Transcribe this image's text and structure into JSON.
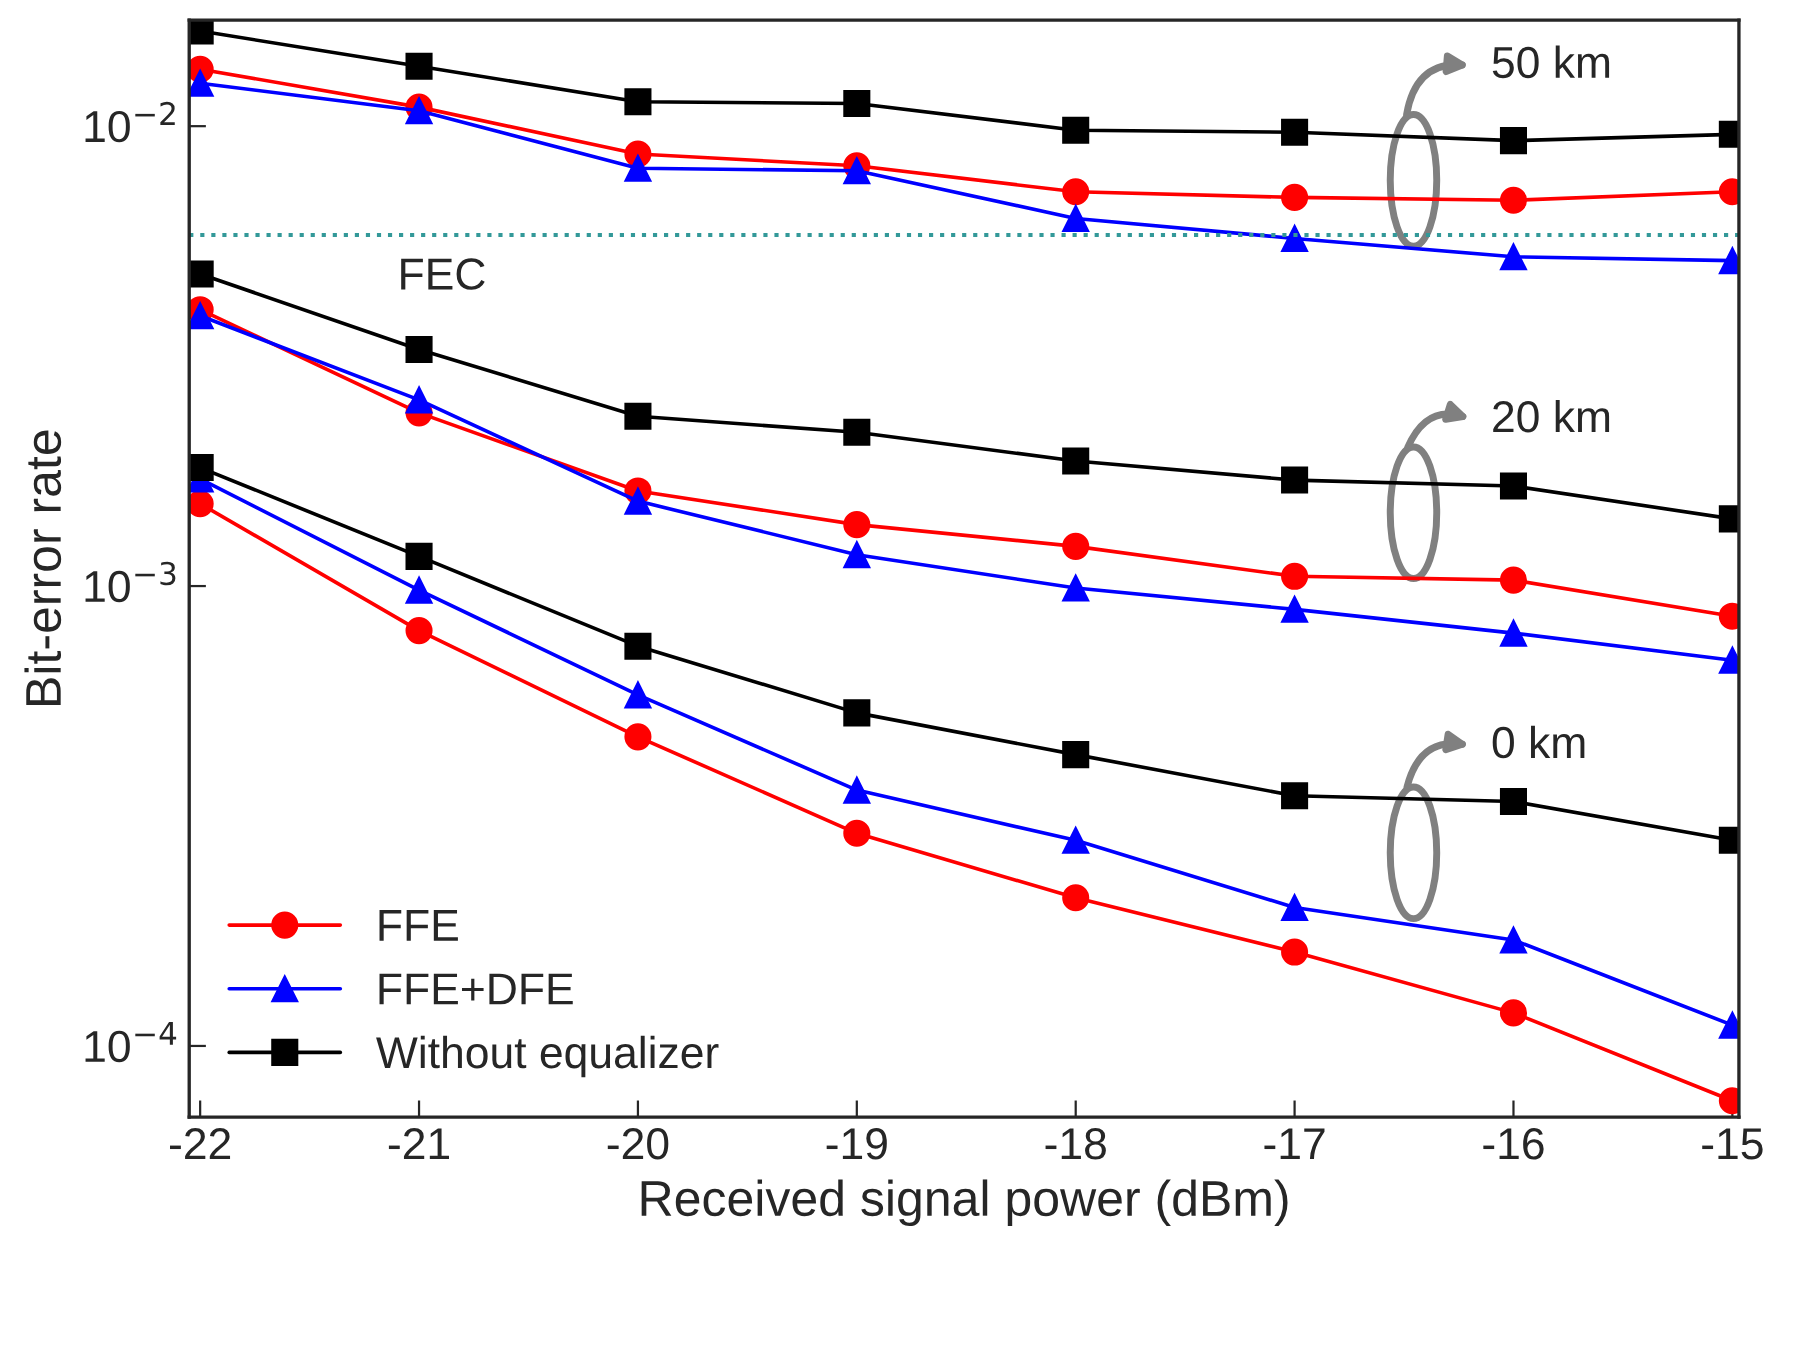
{
  "chart_data": {
    "type": "line",
    "xlabel": "Received signal power (dBm)",
    "ylabel": "Bit-error rate",
    "x": [
      -22,
      -21,
      -20,
      -19,
      -18,
      -17,
      -16,
      -15
    ],
    "xlim": [
      -22.05,
      -14.97
    ],
    "xticks": [
      -22,
      -21,
      -20,
      -19,
      -18,
      -17,
      -16,
      -15
    ],
    "ylim": [
      7e-05,
      0.017
    ],
    "log": "y",
    "yticks": [
      {
        "value": 0.01,
        "label": "10$^{−2}$"
      },
      {
        "value": 0.001,
        "label": "10$^{−3}$"
      },
      {
        "value": 0.0001,
        "label": "10$^{−4}$"
      }
    ],
    "grid": false,
    "legend": "bottom left",
    "ref_lines": [
      {
        "axis": "y",
        "value": 0.0058,
        "label": "FEC",
        "color": "#339999",
        "line_style": "dotted"
      }
    ],
    "annotations": [
      "50 km",
      "20 km",
      "0 km"
    ],
    "series": [
      {
        "color": "#000000",
        "marker": "square",
        "values": [
          0.0161,
          0.0135,
          0.0113,
          0.0112,
          0.0098,
          0.0097,
          0.0093,
          0.0096
        ]
      },
      {
        "color": "#ff0000",
        "marker": "circle",
        "values": [
          0.0133,
          0.011,
          0.0087,
          0.0082,
          0.0072,
          0.007,
          0.0069,
          0.0072
        ]
      },
      {
        "color": "#0000ff",
        "marker": "triangle",
        "values": [
          0.0124,
          0.0108,
          0.0081,
          0.008,
          0.0063,
          0.0057,
          0.0052,
          0.0051
        ]
      },
      {
        "color": "#000000",
        "marker": "square",
        "values": [
          0.00477,
          0.00327,
          0.00234,
          0.00216,
          0.00187,
          0.0017,
          0.00165,
          0.0014
        ]
      },
      {
        "color": "#ff0000",
        "marker": "circle",
        "values": [
          0.00399,
          0.00238,
          0.00161,
          0.00136,
          0.00122,
          0.00105,
          0.00103,
          0.00086
        ]
      },
      {
        "color": "#0000ff",
        "marker": "triangle",
        "values": [
          0.00387,
          0.00254,
          0.00153,
          0.00117,
          0.00099,
          0.00089,
          0.00079,
          0.00069
        ]
      },
      {
        "name": "FFE",
        "color": "#ff0000",
        "marker": "circle",
        "values": [
          0.00151,
          0.0008,
          0.00047,
          0.00029,
          0.00021,
          0.00016,
          0.000118,
          7.6e-05
        ]
      },
      {
        "name": "FFE+DFE",
        "color": "#0000ff",
        "marker": "triangle",
        "values": [
          0.00171,
          0.00098,
          0.00058,
          0.00036,
          0.00028,
          0.0002,
          0.00017,
          0.000111
        ]
      },
      {
        "name": "Without equalizer",
        "color": "#000000",
        "marker": "square",
        "values": [
          0.00181,
          0.00116,
          0.00074,
          0.00053,
          0.00043,
          0.00035,
          0.00034,
          0.00028
        ]
      }
    ]
  }
}
